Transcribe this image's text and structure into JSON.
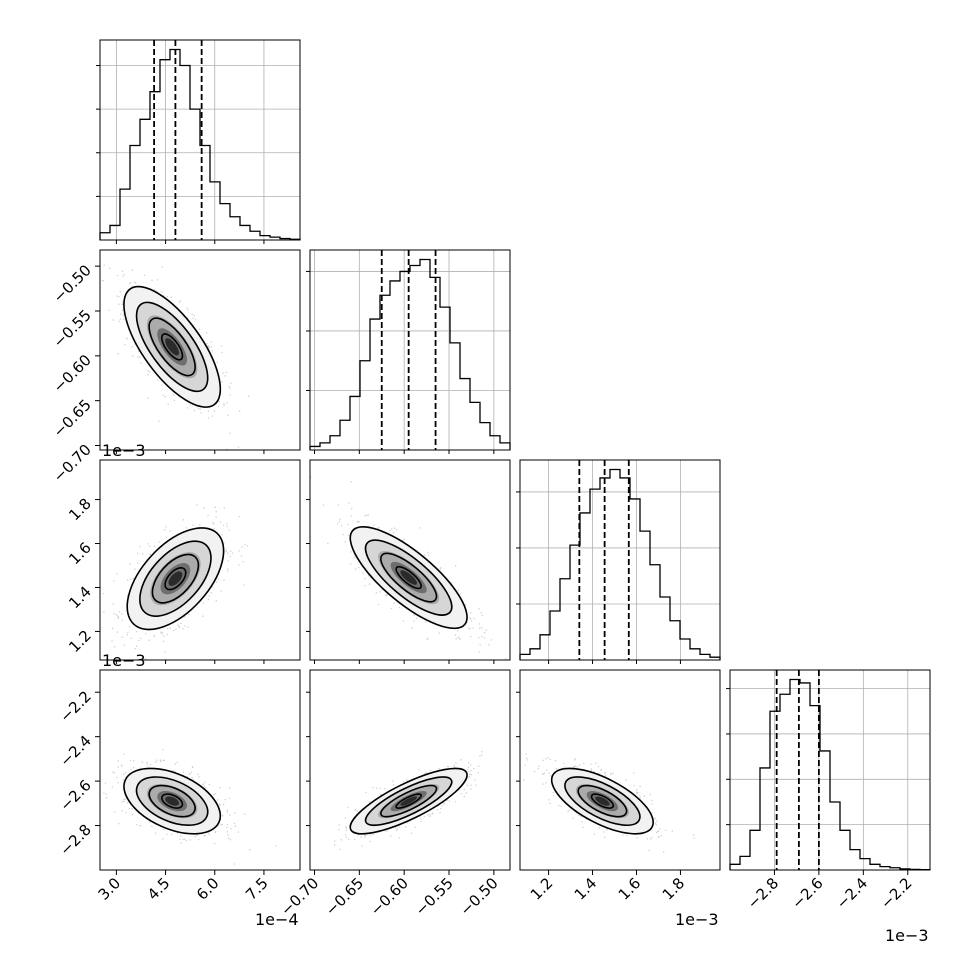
{
  "chart_data": {
    "type": "corner",
    "grid": true,
    "params": [
      {
        "range": [
          2.5,
          8.6
        ],
        "ticks": [
          3.0,
          4.5,
          6.0,
          7.5
        ],
        "tick_labels": [
          "3.0",
          "4.5",
          "6.0",
          "7.5"
        ],
        "offset_label": "1e−4",
        "quantiles": [
          4.15,
          4.8,
          5.6
        ],
        "hist": [
          0.5,
          1.0,
          3.5,
          6.5,
          8.3,
          10.2,
          12.4,
          13.1,
          12.0,
          9.0,
          6.5,
          4.0,
          2.5,
          1.6,
          1.0,
          0.6,
          0.3,
          0.2,
          0.1,
          0.05
        ],
        "hist_ticks": [
          3,
          6,
          9,
          12
        ]
      },
      {
        "range": [
          -0.705,
          -0.482
        ],
        "ticks": [
          -0.7,
          -0.65,
          -0.6,
          -0.55,
          -0.5
        ],
        "tick_labels": [
          "−0.70",
          "−0.65",
          "−0.60",
          "−0.55",
          "−0.50"
        ],
        "offset_label": "1e−3",
        "quantiles": [
          -0.625,
          -0.595,
          -0.565
        ],
        "hist": [
          0.3,
          0.6,
          1.2,
          2.5,
          4.5,
          7.5,
          11.0,
          13.0,
          14.2,
          15.0,
          15.5,
          16.0,
          14.5,
          12.0,
          9.0,
          6.0,
          4.0,
          2.3,
          1.2,
          0.6
        ],
        "hist_ticks": [
          5,
          10,
          15
        ]
      },
      {
        "range": [
          1.07,
          1.98
        ],
        "ticks": [
          1.2,
          1.4,
          1.6,
          1.8
        ],
        "tick_labels": [
          "1.2",
          "1.4",
          "1.6",
          "1.8"
        ],
        "offset_label": "1e−3",
        "quantiles": [
          1.34,
          1.455,
          1.565
        ],
        "hist": [
          0.4,
          0.8,
          1.8,
          3.5,
          5.8,
          8.2,
          10.5,
          12.2,
          13.0,
          13.6,
          13.0,
          11.5,
          9.2,
          6.8,
          4.5,
          2.8,
          1.5,
          0.8,
          0.4,
          0.2
        ],
        "hist_ticks": [
          4,
          8,
          12
        ]
      },
      {
        "range": [
          -3.0,
          -2.1
        ],
        "ticks": [
          -2.8,
          -2.6,
          -2.4,
          -2.2
        ],
        "tick_labels": [
          "−2.8",
          "−2.6",
          "−2.4",
          "−2.2"
        ],
        "offset_label": "1e−3",
        "quantiles": [
          -2.79,
          -2.69,
          -2.6
        ],
        "hist": [
          0.5,
          1.2,
          3.5,
          9.0,
          14.0,
          15.5,
          16.8,
          16.5,
          14.5,
          10.5,
          6.0,
          3.5,
          1.8,
          1.0,
          0.5,
          0.3,
          0.2,
          0.1,
          0.05,
          0.03
        ],
        "hist_ticks": [
          4,
          8,
          12,
          16
        ]
      }
    ],
    "pairs": [
      {
        "row": 1,
        "col": 0,
        "center": [
          4.7,
          -0.59
        ],
        "sd": [
          0.7,
          0.032
        ],
        "rho": -0.7
      },
      {
        "row": 2,
        "col": 0,
        "center": [
          4.8,
          1.44
        ],
        "sd": [
          0.7,
          0.11
        ],
        "rho": 0.55
      },
      {
        "row": 2,
        "col": 1,
        "center": [
          -0.595,
          1.445
        ],
        "sd": [
          0.031,
          0.11
        ],
        "rho": -0.78
      },
      {
        "row": 3,
        "col": 0,
        "center": [
          4.7,
          -2.69
        ],
        "sd": [
          0.7,
          0.07
        ],
        "rho": -0.45
      },
      {
        "row": 3,
        "col": 1,
        "center": [
          -0.595,
          -2.69
        ],
        "sd": [
          0.031,
          0.07
        ],
        "rho": 0.8
      },
      {
        "row": 3,
        "col": 2,
        "center": [
          1.445,
          -2.69
        ],
        "sd": [
          0.11,
          0.07
        ],
        "rho": -0.65
      }
    ]
  }
}
